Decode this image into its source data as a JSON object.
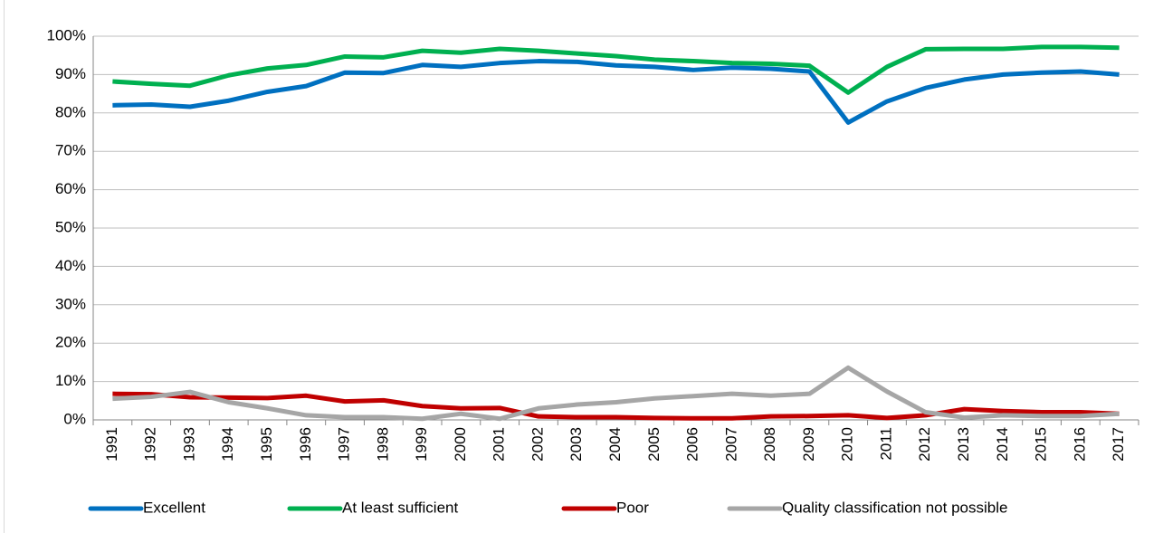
{
  "chart_data": {
    "type": "line",
    "categories": [
      "1991",
      "1992",
      "1993",
      "1994",
      "1995",
      "1996",
      "1997",
      "1998",
      "1999",
      "2000",
      "2001",
      "2002",
      "2003",
      "2004",
      "2005",
      "2006",
      "2007",
      "2008",
      "2009",
      "2010",
      "2011",
      "2012",
      "2013",
      "2014",
      "2015",
      "2016",
      "2017"
    ],
    "series": [
      {
        "name": "Excellent",
        "color": "#0070c0",
        "values": [
          82,
          82.2,
          81.6,
          83.2,
          85.5,
          87,
          90.5,
          90.4,
          92.5,
          92,
          93,
          93.5,
          93.3,
          92.4,
          92,
          91.2,
          91.8,
          91.5,
          90.8,
          77.5,
          83,
          86.5,
          88.7,
          90,
          90.5,
          90.8,
          90
        ]
      },
      {
        "name": "At least sufficient",
        "color": "#00b050",
        "values": [
          88.2,
          87.6,
          87.1,
          89.8,
          91.6,
          92.5,
          94.7,
          94.5,
          96.2,
          95.7,
          96.7,
          96.2,
          95.5,
          94.8,
          93.9,
          93.5,
          93,
          92.8,
          92.3,
          85.3,
          92,
          96.6,
          96.7,
          96.7,
          97.2,
          97.2,
          97
        ]
      },
      {
        "name": "Poor",
        "color": "#c00000",
        "values": [
          6.8,
          6.7,
          5.9,
          5.8,
          5.7,
          6.3,
          4.8,
          5.1,
          3.6,
          3,
          3.1,
          0.9,
          0.7,
          0.7,
          0.5,
          0.4,
          0.4,
          0.9,
          1,
          1.2,
          0.5,
          1.2,
          2.8,
          2.3,
          2,
          2,
          1.6
        ]
      },
      {
        "name": "Quality classification not possible",
        "color": "#a6a6a6",
        "values": [
          5.5,
          6,
          7.3,
          4.6,
          3,
          1.2,
          0.7,
          0.7,
          0.3,
          1.6,
          0.3,
          3,
          4,
          4.6,
          5.6,
          6.2,
          6.8,
          6.3,
          6.8,
          13.6,
          7.4,
          2,
          0.6,
          1.2,
          1,
          1,
          1.6
        ]
      }
    ],
    "ylim": [
      0,
      100
    ],
    "yticks": [
      {
        "value": 0,
        "label": "0%"
      },
      {
        "value": 10,
        "label": "10%"
      },
      {
        "value": 20,
        "label": "20%"
      },
      {
        "value": 30,
        "label": "30%"
      },
      {
        "value": 40,
        "label": "40%"
      },
      {
        "value": 50,
        "label": "50%"
      },
      {
        "value": 60,
        "label": "60%"
      },
      {
        "value": 70,
        "label": "70%"
      },
      {
        "value": 80,
        "label": "80%"
      },
      {
        "value": 90,
        "label": "90%"
      },
      {
        "value": 100,
        "label": "100%"
      }
    ],
    "grid": true,
    "legend": "bottom"
  }
}
